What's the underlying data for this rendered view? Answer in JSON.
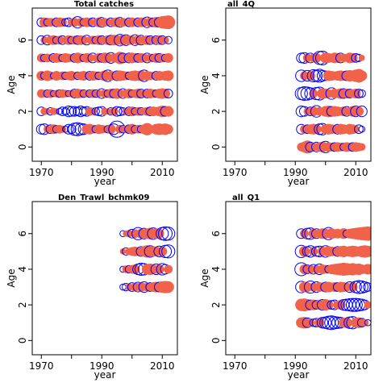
{
  "chart_data": [
    {
      "type": "scatter",
      "title": "Total catches",
      "xlabel": "year",
      "ylabel": "Age",
      "xlim": [
        1967,
        2015
      ],
      "ylim": [
        -0.8,
        7.8
      ],
      "xticks": [
        "1970",
        "1990",
        "2010"
      ],
      "xtick_values": [
        1970,
        1990,
        2010
      ],
      "xminor": [
        1980,
        2000
      ],
      "yticks": [
        "0",
        "2",
        "4",
        "6"
      ],
      "ytick_values": [
        0,
        2,
        4,
        6
      ],
      "positive_color": "#f0624a",
      "negative_color": "#0000ff",
      "ages": [
        1,
        2,
        3,
        4,
        5,
        6,
        7
      ],
      "x": [
        1970,
        1971,
        1972,
        1973,
        1974,
        1975,
        1976,
        1977,
        1978,
        1979,
        1980,
        1981,
        1982,
        1983,
        1984,
        1985,
        1986,
        1987,
        1988,
        1989,
        1990,
        1991,
        1992,
        1993,
        1994,
        1995,
        1996,
        1997,
        1998,
        1999,
        2000,
        2001,
        2002,
        2003,
        2004,
        2005,
        2006,
        2007,
        2008,
        2009,
        2010,
        2011,
        2012
      ],
      "residuals": [
        [
          -0.5,
          -0.6,
          0.3,
          -0.4,
          0.5,
          -0.3,
          0.4,
          0.3,
          -0.2,
          -0.5,
          -0.4,
          -0.8,
          -0.9,
          -0.7,
          -0.6,
          0.5,
          0.6,
          0.4,
          -0.3,
          0.5,
          0.4,
          0.3,
          -0.3,
          0.5,
          -0.6,
          -1.4,
          0.4,
          -0.3,
          0.3,
          -0.4,
          0.6,
          -0.3,
          0.4,
          -0.3,
          0.5,
          0.8,
          0.4,
          0.3,
          0.6,
          0.7,
          0.6,
          0.7,
          0.5
        ],
        [
          -0.4,
          0.3,
          0.2,
          -0.3,
          0.3,
          0.2,
          -0.2,
          -0.4,
          -0.3,
          -0.6,
          -0.5,
          -0.5,
          -0.4,
          -0.6,
          -0.4,
          -0.5,
          0.4,
          0.3,
          -0.3,
          -0.4,
          -0.5,
          0.3,
          0.2,
          -0.3,
          0.4,
          -0.5,
          -0.4,
          -0.3,
          0.3,
          -0.4,
          0.5,
          -0.3,
          0.4,
          -0.3,
          0.3,
          0.4,
          -0.4,
          0.5,
          0.4,
          0.5,
          0.7,
          -0.5,
          0.6
        ],
        [
          0.4,
          0.3,
          -0.3,
          0.4,
          -0.2,
          0.3,
          -0.3,
          0.4,
          0.3,
          -0.2,
          0.3,
          -0.4,
          0.5,
          0.4,
          -0.3,
          0.3,
          -0.3,
          0.4,
          -0.3,
          0.3,
          -0.5,
          0.4,
          -0.3,
          0.5,
          -0.4,
          0.6,
          0.4,
          -0.5,
          0.4,
          0.5,
          -0.3,
          0.4,
          0.5,
          -0.4,
          0.3,
          -0.4,
          0.5,
          0.4,
          -0.3,
          0.5,
          0.6,
          0.5,
          -0.4
        ],
        [
          0.5,
          -0.3,
          0.6,
          0.4,
          -0.2,
          0.5,
          0.3,
          0.4,
          -0.3,
          0.4,
          0.5,
          0.3,
          -0.3,
          0.4,
          0.5,
          0.3,
          -0.4,
          0.5,
          0.4,
          -0.3,
          0.4,
          0.6,
          -0.7,
          0.5,
          0.4,
          -0.5,
          0.6,
          0.5,
          0.4,
          -0.3,
          0.5,
          0.6,
          0.5,
          0.6,
          -0.7,
          0.5,
          0.4,
          0.3,
          -0.4,
          0.5,
          0.4,
          0.5,
          0.6
        ],
        [
          0.4,
          -0.3,
          0.4,
          0.3,
          -0.4,
          0.5,
          0.4,
          -0.3,
          0.5,
          0.4,
          0.3,
          -0.4,
          0.6,
          0.4,
          -0.3,
          0.5,
          0.4,
          -0.5,
          0.3,
          0.5,
          -0.4,
          0.6,
          0.5,
          -0.6,
          0.4,
          0.5,
          0.8,
          -0.5,
          0.4,
          -0.5,
          0.6,
          0.5,
          -0.4,
          0.5,
          0.4,
          -0.5,
          0.4,
          -0.3,
          0.5,
          -0.4,
          0.4,
          -0.3,
          0.5
        ],
        [
          -0.4,
          0.3,
          -0.5,
          0.4,
          0.5,
          -0.3,
          0.4,
          -0.4,
          0.3,
          0.5,
          -0.3,
          0.4,
          -0.4,
          0.5,
          0.4,
          -0.5,
          0.3,
          0.4,
          -0.3,
          0.5,
          -0.4,
          0.3,
          0.5,
          -0.5,
          0.6,
          0.5,
          -0.7,
          0.6,
          -0.6,
          0.5,
          0.4,
          -0.6,
          0.5,
          -0.5,
          0.4,
          0.5,
          -0.4,
          0.3,
          -0.4,
          0.5,
          -0.4,
          0.3,
          -0.3
        ],
        [
          -0.4,
          0.5,
          -0.3,
          0.4,
          0.3,
          -0.4,
          0.5,
          0.4,
          -0.3,
          -0.4,
          0.3,
          0.4,
          -0.7,
          0.4,
          -0.3,
          0.5,
          0.4,
          -0.4,
          0.3,
          0.5,
          -0.5,
          0.4,
          0.3,
          -0.4,
          0.4,
          0.5,
          -0.5,
          0.4,
          0.3,
          -0.4,
          0.5,
          0.3,
          -0.4,
          0.5,
          0.4,
          -0.6,
          0.5,
          -0.4,
          0.6,
          -0.5,
          0.8,
          0.9,
          1.0
        ]
      ]
    },
    {
      "type": "scatter",
      "title": "all_4Q",
      "xlabel": "year",
      "ylabel": "Age",
      "xlim": [
        1967,
        2015
      ],
      "ylim": [
        -0.8,
        7.8
      ],
      "xticks": [
        "1970",
        "1990",
        "2010"
      ],
      "xtick_values": [
        1970,
        1990,
        2010
      ],
      "xminor": [
        1980,
        2000
      ],
      "yticks": [
        "0",
        "2",
        "4",
        "6"
      ],
      "ytick_values": [
        0,
        2,
        4,
        6
      ],
      "positive_color": "#f0624a",
      "negative_color": "#0000ff",
      "ages": [
        0,
        1,
        2,
        3,
        4,
        5
      ],
      "x": [
        1992,
        1993,
        1994,
        1995,
        1996,
        1997,
        1998,
        1999,
        2000,
        2001,
        2002,
        2003,
        2004,
        2005,
        2006,
        2007,
        2008,
        2009,
        2010,
        2011,
        2012
      ],
      "residuals": [
        [
          0.4,
          0.6,
          0.9,
          -0.5,
          0.4,
          -0.5,
          0.5,
          0.6,
          -0.7,
          0.5,
          0.4,
          -0.4,
          0.5,
          0.4,
          -0.3,
          0.5,
          0.4,
          -0.4,
          0.5,
          0.4,
          0.3
        ],
        [
          -0.5,
          0.4,
          -0.4,
          0.5,
          0.6,
          0.5,
          -0.6,
          -0.7,
          0.5,
          0.6,
          0.5,
          0.4,
          -0.5,
          0.6,
          0.5,
          0.4,
          0.6,
          0.5,
          0.3,
          -0.4,
          -0.2
        ],
        [
          -0.6,
          -0.5,
          0.3,
          -0.4,
          0.5,
          -0.7,
          0.4,
          0.3,
          0.6,
          0.7,
          -0.5,
          0.6,
          0.5,
          0.4,
          0.5,
          -0.5,
          0.4,
          0.6,
          -0.6,
          0.5,
          -0.6
        ],
        [
          -0.8,
          -1.0,
          -0.9,
          -0.7,
          0.4,
          -0.8,
          -0.9,
          0.6,
          0.5,
          0.4,
          -0.7,
          0.5,
          0.4,
          0.6,
          -0.5,
          0.5,
          -0.4,
          0.4,
          0.5,
          -0.4,
          -0.3
        ],
        [
          -0.7,
          0.4,
          -0.6,
          0.5,
          -0.8,
          -0.7,
          -0.9,
          -0.6,
          -0.5,
          0.6,
          0.5,
          0.4,
          0.5,
          0.6,
          0.5,
          -0.5,
          0.7,
          0.4,
          0.8,
          1.0,
          0.6
        ],
        [
          -0.5,
          -0.6,
          0.4,
          -0.5,
          0.4,
          0.5,
          -0.9,
          -1.0,
          0.6,
          0.5,
          0.4,
          0.6,
          0.5,
          -0.5,
          0.4,
          0.3,
          0.6,
          0.5,
          -0.4,
          -0.3,
          0.2
        ]
      ]
    },
    {
      "type": "scatter",
      "title": "Den_Trawl_bchmk09",
      "xlabel": "year",
      "ylabel": "Age",
      "xlim": [
        1967,
        2015
      ],
      "ylim": [
        -0.8,
        7.8
      ],
      "xticks": [
        "1970",
        "1990",
        "2010"
      ],
      "xtick_values": [
        1970,
        1990,
        2010
      ],
      "xminor": [
        1980,
        2000
      ],
      "yticks": [
        "0",
        "2",
        "4",
        "6"
      ],
      "ytick_values": [
        0,
        2,
        4,
        6
      ],
      "positive_color": "#f0624a",
      "negative_color": "#0000ff",
      "ages": [
        3,
        4,
        5,
        6
      ],
      "x": [
        1997,
        1998,
        1999,
        2000,
        2001,
        2002,
        2003,
        2004,
        2005,
        2006,
        2007,
        2008,
        2009,
        2010,
        2011,
        2012
      ],
      "residuals": [
        [
          -0.2,
          -0.3,
          0.3,
          -0.4,
          0.4,
          -0.5,
          0.5,
          -0.6,
          0.4,
          -0.4,
          0.5,
          0.6,
          -0.5,
          0.7,
          0.8,
          0.7
        ],
        [
          -0.2,
          0.3,
          -0.3,
          0.4,
          0.5,
          -0.6,
          -0.8,
          -0.7,
          0.6,
          0.7,
          0.5,
          -0.6,
          0.5,
          -0.7,
          -0.5,
          0.4
        ],
        [
          0.2,
          -0.3,
          0.3,
          0.4,
          0.5,
          0.4,
          -0.5,
          0.6,
          0.8,
          -0.7,
          0.6,
          0.5,
          -0.6,
          0.5,
          -0.8,
          -0.9
        ],
        [
          -0.2,
          0.2,
          0.3,
          -0.4,
          0.4,
          -0.8,
          0.5,
          -0.6,
          0.6,
          0.7,
          -0.7,
          0.6,
          0.5,
          -0.8,
          -1.0,
          -0.9
        ]
      ]
    },
    {
      "type": "scatter",
      "title": "all_Q1",
      "xlabel": "year",
      "ylabel": "Age",
      "xlim": [
        1967,
        2015
      ],
      "ylim": [
        -0.8,
        7.8
      ],
      "xticks": [
        "1970",
        "1990",
        "2010"
      ],
      "xtick_values": [
        1970,
        1990,
        2010
      ],
      "xminor": [
        1980,
        2000
      ],
      "yticks": [
        "0",
        "2",
        "4",
        "6"
      ],
      "ytick_values": [
        0,
        2,
        4,
        6
      ],
      "positive_color": "#f0624a",
      "negative_color": "#0000ff",
      "ages": [
        1,
        2,
        3,
        4,
        5,
        6
      ],
      "x": [
        1992,
        1993,
        1994,
        1995,
        1996,
        1997,
        1998,
        1999,
        2000,
        2001,
        2002,
        2003,
        2004,
        2005,
        2006,
        2007,
        2008,
        2009,
        2010,
        2011,
        2012,
        2013,
        2014
      ],
      "residuals": [
        [
          0.6,
          0.7,
          -0.5,
          0.4,
          -0.3,
          -0.4,
          0.5,
          -0.6,
          -0.7,
          -0.9,
          -1.0,
          -0.8,
          -0.7,
          -0.6,
          0.5,
          0.6,
          -0.7,
          -0.8,
          0.5,
          0.6,
          -0.4,
          0.3,
          -0.2
        ],
        [
          0.8,
          0.9,
          0.7,
          -0.5,
          0.6,
          -0.4,
          0.5,
          -0.6,
          0.7,
          0.5,
          -0.4,
          -0.5,
          0.4,
          0.5,
          -0.6,
          -0.7,
          -0.8,
          -0.9,
          -0.9,
          -0.8,
          -0.7,
          -0.5,
          0.3
        ],
        [
          -0.7,
          0.6,
          0.5,
          -0.8,
          0.4,
          -0.6,
          0.5,
          0.4,
          -0.5,
          0.6,
          0.4,
          0.5,
          -0.4,
          0.6,
          0.5,
          0.4,
          -0.6,
          0.5,
          -0.7,
          -0.9,
          -0.8,
          -0.6,
          -0.4
        ],
        [
          -0.9,
          0.5,
          -0.4,
          0.4,
          -0.5,
          0.4,
          -0.6,
          0.5,
          0.4,
          -0.3,
          0.5,
          0.6,
          0.7,
          0.8,
          0.9,
          0.8,
          0.7,
          0.8,
          0.6,
          0.7,
          0.5,
          0.4,
          0.6
        ],
        [
          -0.8,
          0.6,
          -0.5,
          -0.7,
          0.4,
          -0.5,
          -0.6,
          0.5,
          -0.7,
          0.6,
          0.5,
          0.4,
          -0.5,
          0.6,
          0.7,
          0.5,
          0.6,
          0.7,
          0.6,
          0.5,
          0.7,
          0.8,
          0.7
        ],
        [
          -0.5,
          0.4,
          -0.6,
          -0.7,
          0.5,
          -0.5,
          0.4,
          0.6,
          0.5,
          -0.8,
          0.6,
          0.4,
          0.5,
          0.3,
          0.6,
          -0.3,
          0.5,
          0.6,
          0.7,
          0.8,
          0.9,
          1.0,
          1.1
        ]
      ]
    }
  ]
}
